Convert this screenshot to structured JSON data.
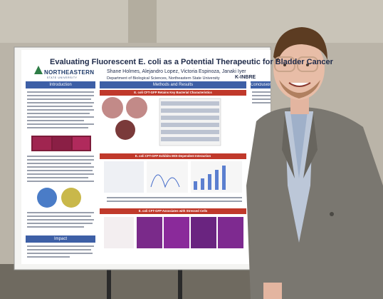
{
  "poster": {
    "title": "Evaluating Fluorescent E. coli as a Potential Therapeutic for Bladder Cancer",
    "authors": "Shane Holmes, Alejandro Lopez, Victoria Espinoza, Janaki Iyer",
    "department": "Department of Biological Sciences, Northeastern State University",
    "logo_name": "NORTHEASTERN",
    "logo_sub": "STATE UNIVERSITY",
    "sponsor": "K-INBRE",
    "sections": {
      "introduction": "Introduction",
      "methods": "Methods and Results",
      "conclusion": "Conclusion",
      "impact": "Impact"
    },
    "panels": {
      "panel1": "E. coli CFT-GFP Retains Key Bacterial Characteristics",
      "panel2": "E. coli CFT-GFP Exhibits MOI-Dependent Interaction",
      "panel3": "E. coli CFT-GFP Associates with Stressed Cells"
    }
  },
  "colors": {
    "section_header": "#3d5fa6",
    "panel_header": "#c0392b",
    "poster_bg": "#ffffff",
    "jacket": "#7a7770"
  }
}
